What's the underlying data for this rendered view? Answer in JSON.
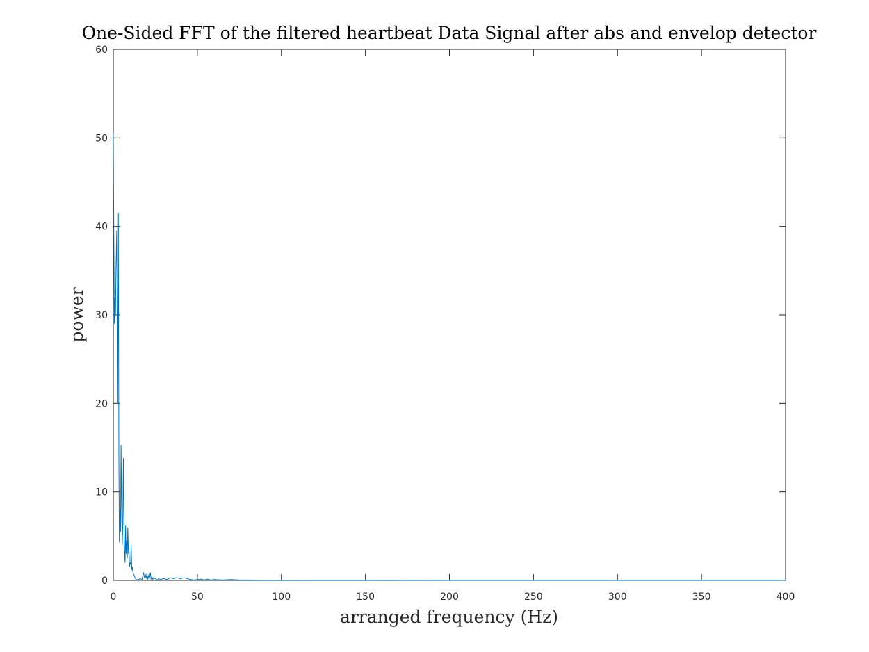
{
  "chart_data": {
    "type": "line",
    "title": "One-Sided FFT of the filtered heartbeat Data Signal after abs and envelop detector",
    "xlabel": "arranged frequency (Hz)",
    "ylabel": "power",
    "xlim": [
      0,
      400
    ],
    "ylim": [
      0,
      60
    ],
    "x_ticks": [
      0,
      50,
      100,
      150,
      200,
      250,
      300,
      350,
      400
    ],
    "y_ticks": [
      0,
      10,
      20,
      30,
      40,
      50,
      60
    ],
    "x_tick_labels": [
      "0",
      "50",
      "100",
      "150",
      "200",
      "250",
      "300",
      "350",
      "400"
    ],
    "y_tick_labels": [
      "0",
      "10",
      "20",
      "30",
      "40",
      "50",
      "60"
    ],
    "grid": false,
    "legend": "none",
    "series": [
      {
        "color": "#0072BD",
        "x": [
          0,
          0.3,
          0.6,
          1.0,
          1.3,
          1.6,
          2.0,
          2.3,
          2.6,
          3.0,
          3.3,
          3.6,
          4.0,
          4.3,
          4.6,
          5.0,
          5.3,
          5.6,
          6.0,
          6.3,
          6.6,
          7.0,
          7.3,
          7.6,
          8.0,
          8.3,
          8.6,
          9.0,
          9.3,
          9.6,
          10.0,
          10.3,
          10.6,
          11.0,
          11.3,
          11.6,
          12.0,
          12.5,
          13.0,
          13.5,
          14.0,
          15.0,
          16.0,
          17.0,
          18.0,
          18.5,
          19.0,
          19.5,
          20.0,
          20.5,
          21.0,
          21.5,
          22.0,
          22.5,
          23.0,
          23.5,
          24.0,
          25.0,
          26.0,
          27.0,
          28.0,
          30.0,
          32.0,
          34.0,
          36.0,
          38.0,
          40.0,
          42.0,
          44.0,
          46.0,
          48.0,
          50.0,
          52.0,
          54.0,
          56.0,
          58.0,
          60.0,
          65.0,
          70.0,
          75.0,
          80.0,
          90.0,
          100.0,
          120.0,
          150.0,
          200.0,
          250.0,
          300.0,
          350.0,
          400.0
        ],
        "y": [
          50.5,
          39.0,
          29.0,
          32.0,
          30.0,
          35.0,
          39.5,
          33.0,
          20.0,
          41.5,
          14.0,
          4.3,
          8.0,
          5.5,
          15.3,
          7.0,
          4.0,
          6.0,
          13.8,
          6.5,
          3.5,
          2.0,
          6.2,
          3.0,
          4.5,
          2.5,
          6.0,
          3.0,
          4.0,
          1.5,
          2.0,
          1.8,
          4.0,
          1.2,
          1.5,
          1.0,
          0.7,
          0.5,
          0.3,
          0.1,
          0.05,
          0.1,
          0.2,
          0.1,
          0.9,
          0.3,
          0.7,
          0.2,
          0.8,
          0.1,
          0.6,
          0.2,
          0.9,
          0.1,
          0.4,
          0.1,
          0.3,
          0.2,
          0.05,
          0.2,
          0.1,
          0.2,
          0.1,
          0.3,
          0.2,
          0.3,
          0.2,
          0.3,
          0.2,
          0.1,
          0.05,
          0.1,
          0.15,
          0.05,
          0.15,
          0.05,
          0.1,
          0.05,
          0.1,
          0.05,
          0.05,
          0.03,
          0.03,
          0.02,
          0.02,
          0.01,
          0.01,
          0.01,
          0.01,
          0.01
        ]
      }
    ]
  }
}
